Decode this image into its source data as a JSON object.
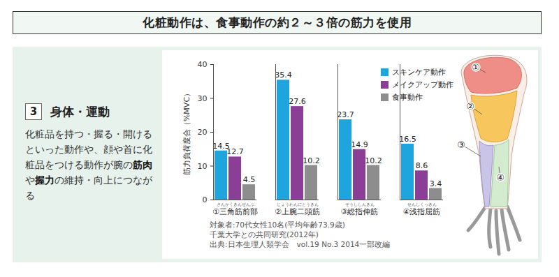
{
  "page": {
    "banner": "化粧動作は、食事動作の約２～３倍の筋力を使用",
    "section_number": "3",
    "section_title": "身体・運動",
    "description": [
      {
        "text": "化粧品を持つ・握る・開けるといった動作や、顔や首に化粧品をつける動作が腕の"
      },
      {
        "text": "筋肉",
        "bold": true
      },
      {
        "text": "や"
      },
      {
        "text": "握力",
        "bold": true
      },
      {
        "text": "の維持・向上につながる"
      }
    ],
    "notes": [
      "対象者:70代女性10名(平均年齢73.9歳)",
      "千葉大学との共同研究(2012年)",
      "出典:日本生理人類学会　vol.19 No.3 2014一部改編"
    ],
    "figure_labels": [
      "①",
      "②",
      "③",
      "④"
    ]
  },
  "chart_data": {
    "type": "bar",
    "y_label": "筋力負荷度合（%MVC）",
    "categories": [
      "①三角筋前部",
      "②上腕二頭筋",
      "③総指伸筋",
      "④浅指屈筋"
    ],
    "category_readings": [
      "さんかくきんぜんぶ",
      "じょうわんにとうきん",
      "そうししんきん",
      "せんしくっきん"
    ],
    "series": [
      {
        "name": "スキンケア動作",
        "color": "#1ea5dd",
        "values": [
          14.5,
          35.4,
          23.7,
          16.5
        ]
      },
      {
        "name": "メイクアップ動作",
        "color": "#8b3e96",
        "values": [
          12.7,
          27.6,
          14.9,
          8.6
        ]
      },
      {
        "name": "食事動作",
        "color": "#8d8d8d",
        "values": [
          4.5,
          10.2,
          10.2,
          3.4
        ]
      }
    ],
    "ylim": [
      0,
      40
    ],
    "yticks": [
      0,
      10,
      20,
      30,
      40
    ],
    "grid": false,
    "legend": "top-right",
    "data_labels": true
  }
}
